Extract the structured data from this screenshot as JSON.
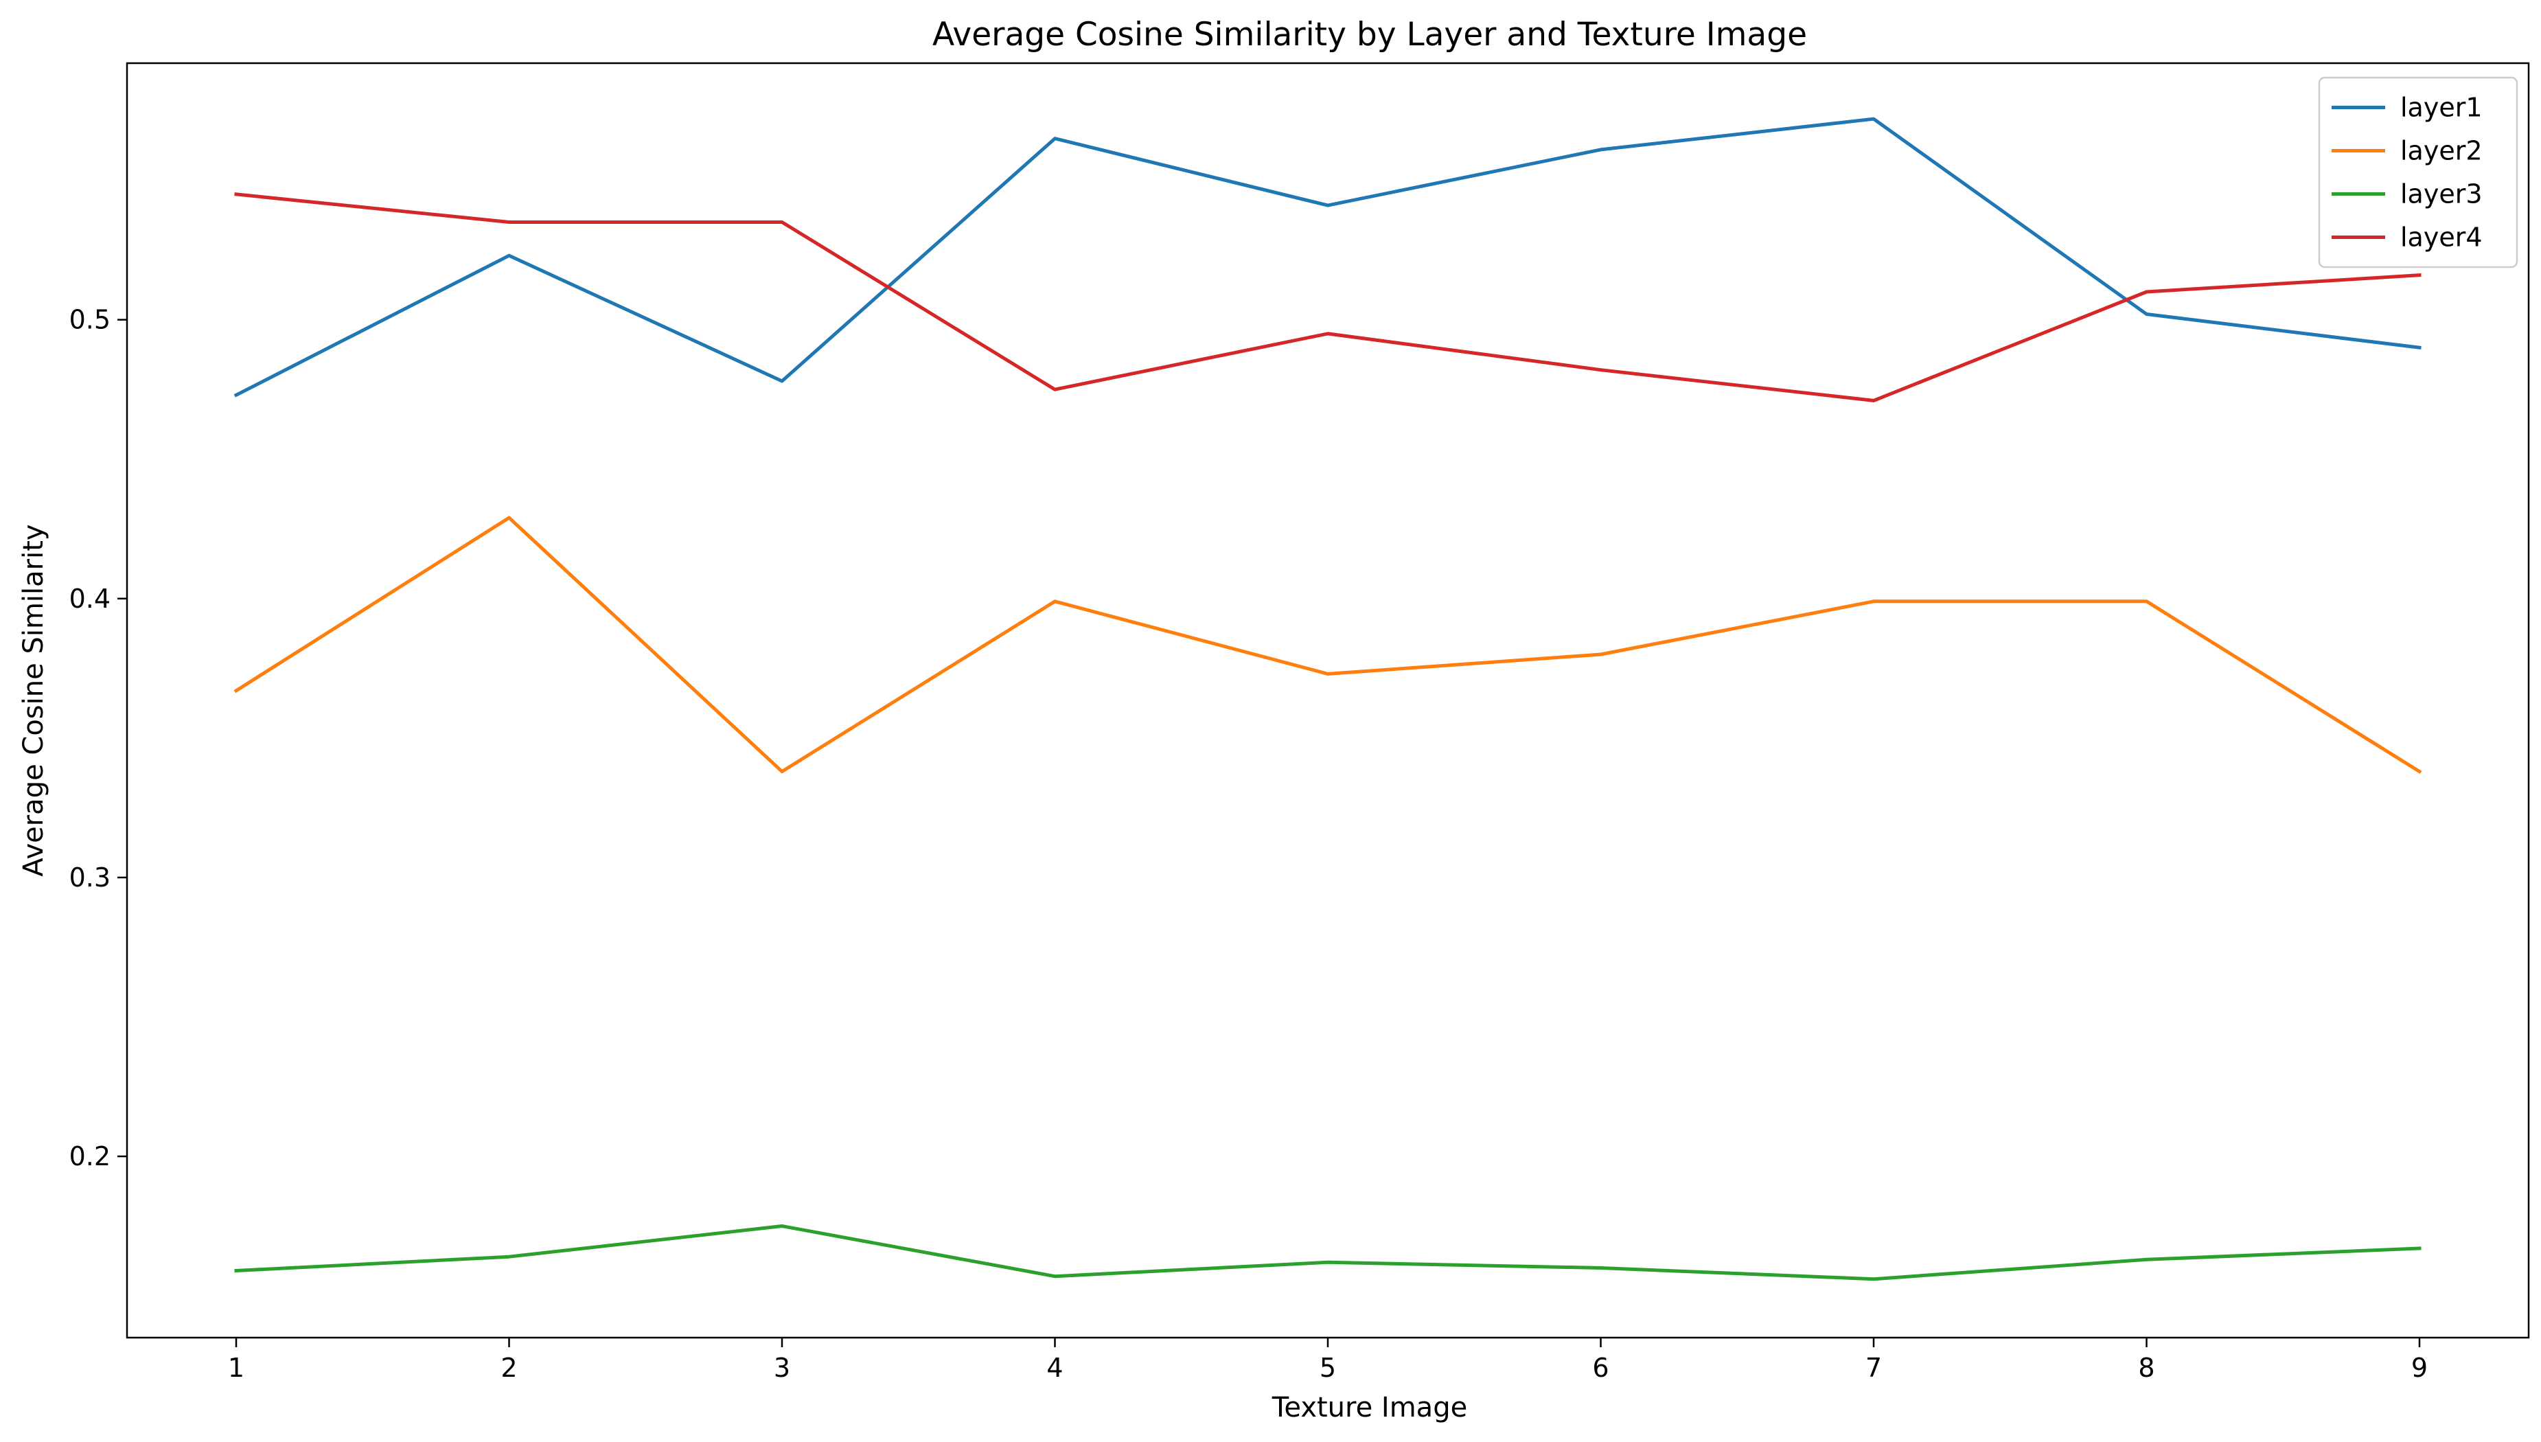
{
  "chart_data": {
    "type": "line",
    "title": "Average Cosine Similarity by Layer and Texture Image",
    "xlabel": "Texture Image",
    "ylabel": "Average Cosine Similarity",
    "x": [
      1,
      2,
      3,
      4,
      5,
      6,
      7,
      8,
      9
    ],
    "x_ticks": [
      "1",
      "2",
      "3",
      "4",
      "5",
      "6",
      "7",
      "8",
      "9"
    ],
    "y_ticks": [
      0.2,
      0.3,
      0.4,
      0.5
    ],
    "y_tick_labels": [
      "0.2",
      "0.3",
      "0.4",
      "0.5"
    ],
    "xlim": [
      0.6,
      9.4
    ],
    "ylim": [
      0.135,
      0.592
    ],
    "grid": false,
    "legend_position": "top-right",
    "series": [
      {
        "name": "layer1",
        "color": "#1f77b4",
        "values": [
          0.473,
          0.523,
          0.478,
          0.565,
          0.541,
          0.561,
          0.572,
          0.502,
          0.49
        ]
      },
      {
        "name": "layer2",
        "color": "#ff7f0e",
        "values": [
          0.367,
          0.429,
          0.338,
          0.399,
          0.373,
          0.38,
          0.399,
          0.399,
          0.338
        ]
      },
      {
        "name": "layer3",
        "color": "#2ca02c",
        "values": [
          0.159,
          0.164,
          0.175,
          0.157,
          0.162,
          0.16,
          0.156,
          0.163,
          0.167
        ]
      },
      {
        "name": "layer4",
        "color": "#d62728",
        "values": [
          0.545,
          0.535,
          0.535,
          0.475,
          0.495,
          0.482,
          0.471,
          0.51,
          0.516
        ]
      }
    ]
  }
}
